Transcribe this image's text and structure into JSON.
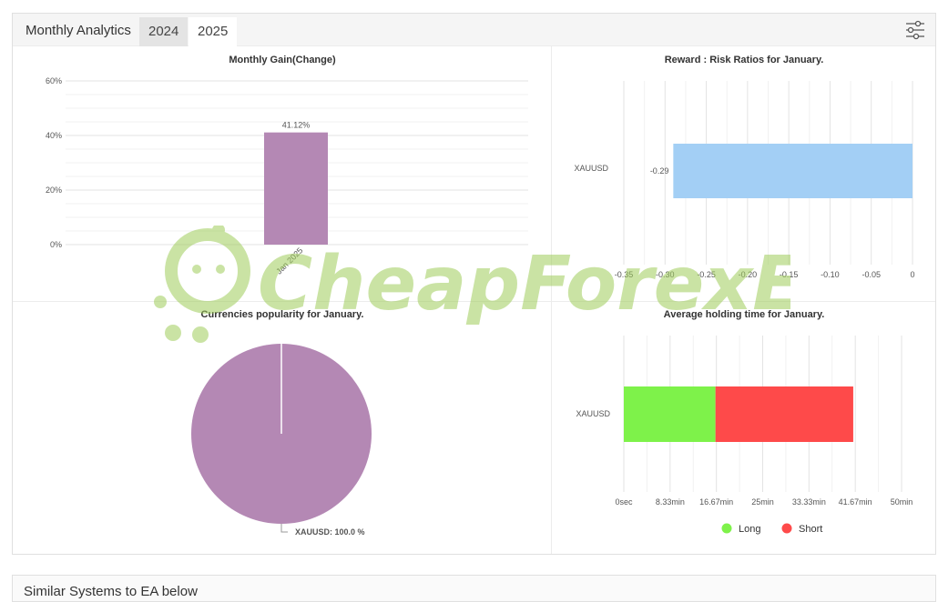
{
  "header": {
    "title": "Monthly Analytics",
    "tabs": [
      {
        "label": "2024"
      },
      {
        "label": "2025"
      }
    ],
    "settings_icon": "sliders-icon"
  },
  "bottom": {
    "title": "Similar Systems to EA below"
  },
  "watermark": {
    "text": "CheapForexEa"
  },
  "colors": {
    "gain_bar": "#b488b4",
    "risk_bar": "#a3cff5",
    "long": "#7ef24a",
    "short": "#fe4a4a",
    "pie": "#b488b4"
  },
  "chart_data": [
    {
      "type": "bar",
      "title": "Monthly Gain(Change)",
      "categories": [
        "Jan 2025"
      ],
      "values": [
        41.12
      ],
      "data_labels": [
        "41.12%"
      ],
      "yticks": [
        "0%",
        "20%",
        "40%",
        "60%"
      ],
      "ylim": [
        0,
        60
      ],
      "grid": true
    },
    {
      "type": "bar",
      "orientation": "horizontal",
      "title": "Reward : Risk Ratios for January.",
      "categories": [
        "XAUUSD"
      ],
      "values": [
        -0.29
      ],
      "data_labels": [
        "-0.29"
      ],
      "xticks": [
        "-0.35",
        "-0.30",
        "-0.25",
        "-0.20",
        "-0.15",
        "-0.10",
        "-0.05",
        "0"
      ],
      "xlim": [
        -0.35,
        0
      ],
      "grid": true
    },
    {
      "type": "pie",
      "title": "Currencies popularity for January.",
      "slices": [
        {
          "label": "XAUUSD: 100.0 %",
          "value": 100.0
        }
      ]
    },
    {
      "type": "bar",
      "orientation": "horizontal",
      "stacked": true,
      "title": "Average holding time for January.",
      "categories": [
        "XAUUSD"
      ],
      "series": [
        {
          "name": "Long",
          "values": [
            16.5
          ]
        },
        {
          "name": "Short",
          "values": [
            24.8
          ]
        }
      ],
      "xticks": [
        "0sec",
        "8.33min",
        "16.67min",
        "25min",
        "33.33min",
        "41.67min",
        "50min"
      ],
      "xlim": [
        0,
        50
      ],
      "legend": "bottom",
      "grid": true
    }
  ]
}
